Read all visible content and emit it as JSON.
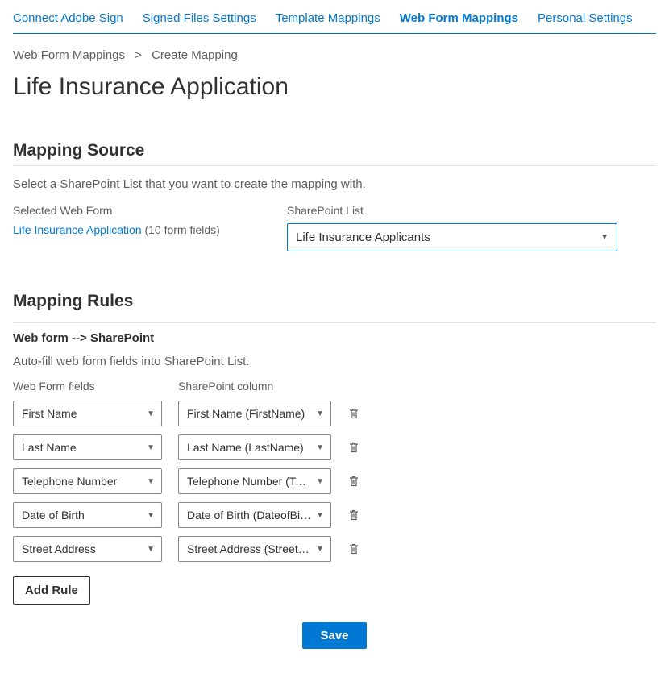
{
  "nav": {
    "items": [
      {
        "label": "Connect Adobe Sign",
        "active": false
      },
      {
        "label": "Signed Files Settings",
        "active": false
      },
      {
        "label": "Template Mappings",
        "active": false
      },
      {
        "label": "Web Form Mappings",
        "active": true
      },
      {
        "label": "Personal Settings",
        "active": false
      }
    ]
  },
  "breadcrumb": {
    "root": "Web Form Mappings",
    "leaf": "Create Mapping"
  },
  "page_title": "Life Insurance Application",
  "mapping_source": {
    "title": "Mapping Source",
    "desc": "Select a SharePoint List that you want to create the mapping with.",
    "left_label": "Selected Web Form",
    "right_label": "SharePoint List",
    "selected_form_name": "Life Insurance Application",
    "selected_form_meta": "(10 form fields)",
    "sp_list_value": "Life Insurance Applicants"
  },
  "mapping_rules": {
    "title": "Mapping Rules",
    "direction": "Web form --> SharePoint",
    "desc": "Auto-fill web form fields into SharePoint List.",
    "col1": "Web Form fields",
    "col2": "SharePoint column",
    "rows": [
      {
        "field": "First Name",
        "column": "First Name (FirstName)"
      },
      {
        "field": "Last Name",
        "column": "Last Name (LastName)"
      },
      {
        "field": "Telephone Number",
        "column": "Telephone Number (Tele..."
      },
      {
        "field": "Date of Birth",
        "column": "Date of Birth (DateofBirth)"
      },
      {
        "field": "Street Address",
        "column": "Street Address (StreetAd..."
      }
    ],
    "add_rule_label": "Add Rule"
  },
  "actions": {
    "save": "Save"
  },
  "colors": {
    "primary": "#0078d4",
    "text": "#323130",
    "muted": "#605e5c",
    "border": "#e1dfdd",
    "input_border": "#8a8886"
  }
}
